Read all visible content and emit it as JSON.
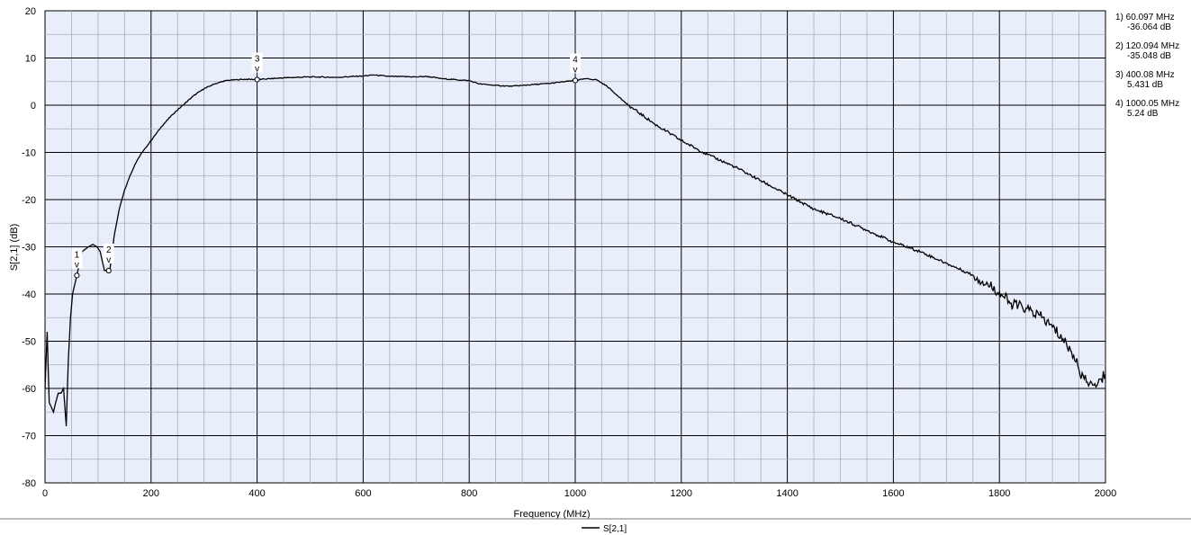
{
  "chart_data": {
    "type": "line",
    "xlabel": "Frequency (MHz)",
    "ylabel": "S[2,1] (dB)",
    "xlim": [
      0,
      2000
    ],
    "ylim": [
      -80,
      20
    ],
    "x_ticks": [
      "0",
      "200",
      "400",
      "600",
      "800",
      "1000",
      "1200",
      "1400",
      "1600",
      "1800",
      "2000"
    ],
    "y_ticks": [
      "20",
      "10",
      "0",
      "-10",
      "-20",
      "-30",
      "-40",
      "-50",
      "-60",
      "-70",
      "-80"
    ],
    "grid": true,
    "plot_background": "#e9eefb",
    "line_color": "#000000",
    "legend": {
      "placement": "bottom-center",
      "entries": [
        "S[2,1]"
      ]
    },
    "series": [
      {
        "name": "S[2,1]",
        "x": [
          0,
          4,
          8,
          12,
          16,
          20,
          25,
          30,
          35,
          40,
          44,
          48,
          52,
          56,
          60,
          64,
          70,
          76,
          82,
          90,
          98,
          104,
          108,
          112,
          118,
          122,
          126,
          130,
          140,
          150,
          160,
          170,
          180,
          190,
          200,
          220,
          240,
          260,
          280,
          300,
          320,
          340,
          360,
          380,
          400,
          450,
          500,
          550,
          600,
          620,
          650,
          700,
          720,
          750,
          800,
          820,
          850,
          880,
          900,
          950,
          1000,
          1020,
          1040,
          1060,
          1080,
          1100,
          1150,
          1200,
          1250,
          1300,
          1350,
          1400,
          1450,
          1500,
          1550,
          1600,
          1650,
          1700,
          1750,
          1800,
          1820,
          1850,
          1880,
          1900,
          1920,
          1940,
          1950,
          1960,
          1970,
          1980,
          1990,
          2000
        ],
        "values": [
          -60,
          -48,
          -63,
          -64,
          -65,
          -63,
          -61,
          -61,
          -60,
          -68,
          -54,
          -45,
          -40,
          -38,
          -36.1,
          -34,
          -31,
          -30.5,
          -30,
          -29.5,
          -30,
          -31,
          -33,
          -35,
          -35,
          -35.05,
          -32,
          -28,
          -22,
          -18,
          -15,
          -12.5,
          -10.5,
          -9,
          -7.5,
          -4.5,
          -2,
          0,
          2,
          3.5,
          4.5,
          5.2,
          5.4,
          5.5,
          5.43,
          5.8,
          6.0,
          5.9,
          6.2,
          6.4,
          6.1,
          6.0,
          6.1,
          5.6,
          5.2,
          4.5,
          4.2,
          4.0,
          4.2,
          4.6,
          5.24,
          5.6,
          5.4,
          4.0,
          2.0,
          0.0,
          -4,
          -7.5,
          -10.5,
          -13,
          -16,
          -19,
          -22,
          -24,
          -26.5,
          -29,
          -31,
          -33.5,
          -36,
          -39.5,
          -42,
          -43,
          -45,
          -47,
          -49.5,
          -53,
          -56,
          -58,
          -59,
          -59,
          -58,
          -57
        ]
      }
    ],
    "markers": [
      {
        "label": "1",
        "x": 60.097,
        "y": -36.064,
        "readout_freq": "1) 60.097 MHz",
        "readout_value": "-36.064 dB"
      },
      {
        "label": "2",
        "x": 120.094,
        "y": -35.048,
        "readout_freq": "2) 120.094 MHz",
        "readout_value": "-35.048 dB"
      },
      {
        "label": "3",
        "x": 400.08,
        "y": 5.431,
        "readout_freq": "3) 400.08 MHz",
        "readout_value": "5.431 dB"
      },
      {
        "label": "4",
        "x": 1000.05,
        "y": 5.24,
        "readout_freq": "4) 1000.05 MHz",
        "readout_value": "5.24 dB"
      }
    ],
    "marker_symbol": "v"
  }
}
